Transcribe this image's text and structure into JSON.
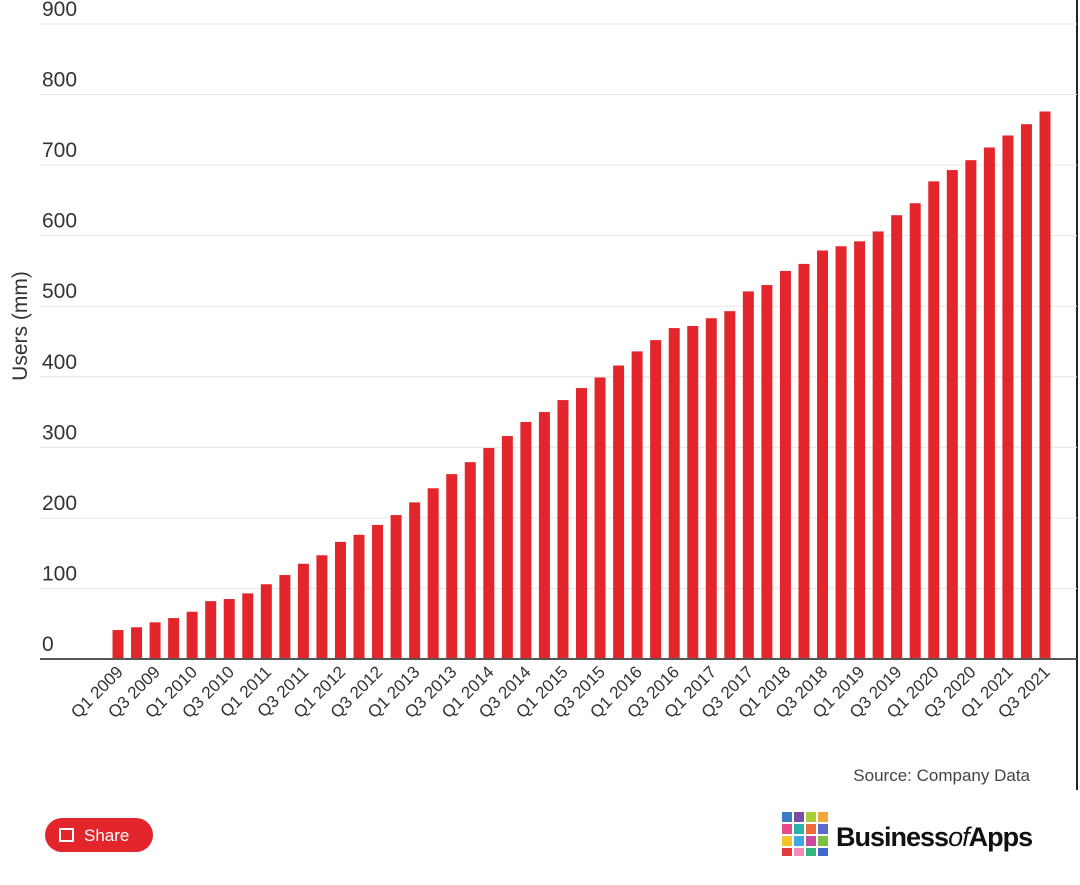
{
  "chart_data": {
    "type": "bar",
    "y_axis_label": "Users (mm)",
    "categories": [
      "Q1 2009",
      null,
      "Q3 2009",
      null,
      "Q1 2010",
      null,
      "Q3 2010",
      null,
      "Q1 2011",
      null,
      "Q3 2011",
      null,
      "Q1 2012",
      null,
      "Q3 2012",
      null,
      "Q1 2013",
      null,
      "Q3 2013",
      null,
      "Q1 2014",
      null,
      "Q3 2014",
      null,
      "Q1 2015",
      null,
      "Q3 2015",
      null,
      "Q1 2016",
      null,
      "Q3 2016",
      null,
      "Q1 2017",
      null,
      "Q3 2017",
      null,
      "Q1 2018",
      null,
      "Q3 2018",
      null,
      "Q1 2019",
      null,
      "Q3 2019",
      null,
      "Q1 2020",
      null,
      "Q3 2020",
      null,
      "Q1 2021",
      null,
      "Q3 2021"
    ],
    "values": [
      41,
      45,
      52,
      58,
      67,
      82,
      85,
      93,
      106,
      119,
      135,
      147,
      166,
      176,
      190,
      204,
      222,
      242,
      262,
      279,
      299,
      316,
      336,
      350,
      367,
      384,
      399,
      416,
      436,
      452,
      469,
      472,
      483,
      493,
      521,
      530,
      550,
      560,
      579,
      585,
      592,
      606,
      629,
      646,
      677,
      693,
      707,
      725,
      742,
      758,
      776
    ],
    "color": "#e3262b",
    "ylim": [
      0,
      900
    ],
    "yticks": [
      0,
      100,
      200,
      300,
      400,
      500,
      600,
      700,
      800,
      900
    ],
    "grid": true,
    "source": "Source: Company Data"
  },
  "share_button": "Share",
  "logo": [
    "Business",
    "of",
    "Apps"
  ]
}
